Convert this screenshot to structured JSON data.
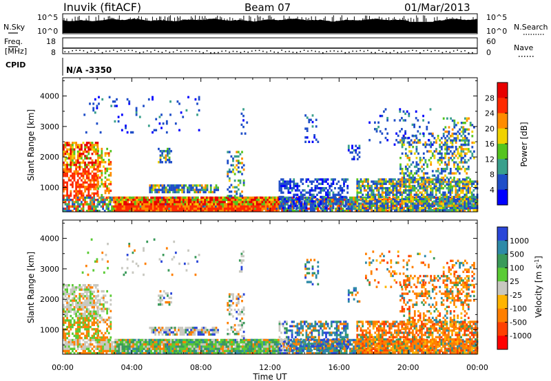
{
  "header": {
    "station": "Inuvik (fitACF)",
    "beam": "Beam 07",
    "date": "01/Mar/2013"
  },
  "chart_data": [
    {
      "type": "line",
      "panel": "noise",
      "left_label": "N.Sky",
      "right_label": "N.Search",
      "left_ticks": [
        "10^5",
        "10^0"
      ],
      "right_ticks": [
        "10^5",
        "10^0"
      ]
    },
    {
      "type": "scatter",
      "panel": "frequency",
      "left_label_line1": "Freq.",
      "left_label_line2": "[MHz]",
      "right_label": "Nave",
      "left_ticks": [
        18,
        8
      ],
      "right_ticks": [
        60,
        0
      ]
    },
    {
      "type": "table",
      "panel": "cpid",
      "label": "CPID",
      "value": "N/A -3350"
    },
    {
      "type": "heatmap",
      "panel": "power",
      "ylabel": "Slant Range [km]",
      "yticks": [
        1000,
        2000,
        3000,
        4000
      ],
      "ylim": [
        200,
        4600
      ],
      "xlim": [
        0,
        24
      ],
      "colorbar_label": "Power [dB]",
      "colorbar_ticks": [
        "4",
        "8",
        "12",
        "16",
        "20",
        "24",
        "28"
      ],
      "colors": [
        "#0000ff",
        "#1f4ec8",
        "#3aa08c",
        "#55c41e",
        "#f0d200",
        "#ff8c00",
        "#ff2a00",
        "#e80000"
      ]
    },
    {
      "type": "heatmap",
      "panel": "velocity",
      "ylabel": "Slant Range [km]",
      "yticks": [
        1000,
        2000,
        3000,
        4000
      ],
      "ylim": [
        200,
        4600
      ],
      "xlim": [
        0,
        24
      ],
      "colorbar_label": "Velocity [m s",
      "colorbar_label_sup": "-1",
      "colorbar_label_end": "]",
      "colorbar_ticks": [
        "1000",
        "500",
        "100",
        "25",
        "-25",
        "-100",
        "-500",
        "-1000"
      ],
      "colors": [
        "#2a46d8",
        "#2e8aa8",
        "#3a9a5a",
        "#5acb35",
        "#c8c8c0",
        "#ffb400",
        "#ff7f00",
        "#ff4000",
        "#ff0000"
      ]
    },
    {
      "type": "axis",
      "panel": "time",
      "xlabel": "Time UT",
      "xticks": [
        "00:00",
        "04:00",
        "08:00",
        "12:00",
        "16:00",
        "20:00",
        "00:00"
      ]
    }
  ]
}
